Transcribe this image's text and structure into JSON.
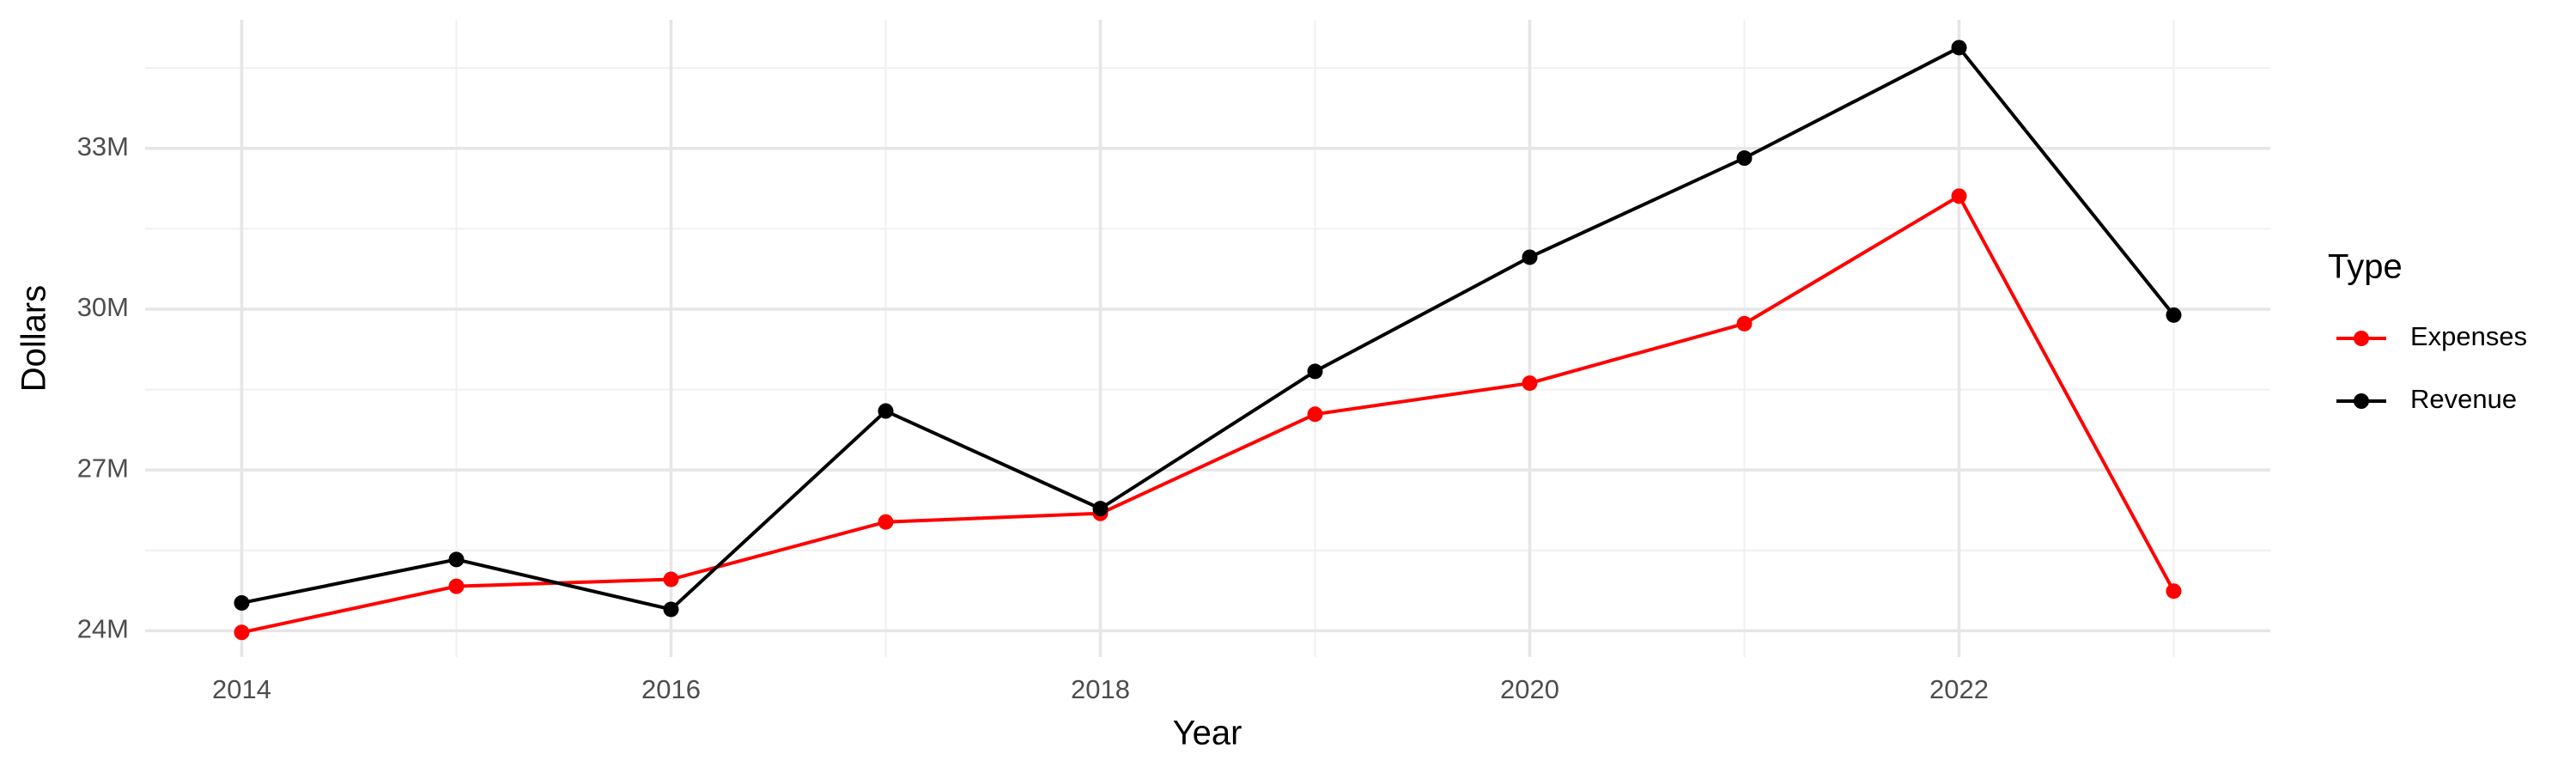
{
  "chart_data": {
    "type": "line",
    "x_label": "Year",
    "y_label": "Dollars",
    "legend_title": "Type",
    "x": [
      2014,
      2015,
      2016,
      2017,
      2018,
      2019,
      2020,
      2021,
      2022,
      2023
    ],
    "series": [
      {
        "name": "Expenses",
        "color": "#ff0000",
        "values": [
          23970000,
          24830000,
          24960000,
          26030000,
          26190000,
          28040000,
          28620000,
          29730000,
          32110000,
          24740000
        ]
      },
      {
        "name": "Revenue",
        "color": "#000000",
        "values": [
          24520000,
          25330000,
          24400000,
          28100000,
          26280000,
          28840000,
          30970000,
          32820000,
          34880000,
          29890000
        ]
      }
    ],
    "xlim": [
      2013.55,
      2023.45
    ],
    "xticks": [
      2014,
      2016,
      2018,
      2020,
      2022
    ],
    "ylim": [
      23510000,
      35400000
    ],
    "yticks": [
      {
        "value": 24000000,
        "label": "24M"
      },
      {
        "value": 27000000,
        "label": "27M"
      },
      {
        "value": 30000000,
        "label": "30M"
      },
      {
        "value": 33000000,
        "label": "33M"
      }
    ],
    "grid": true,
    "legend_position": "right"
  }
}
